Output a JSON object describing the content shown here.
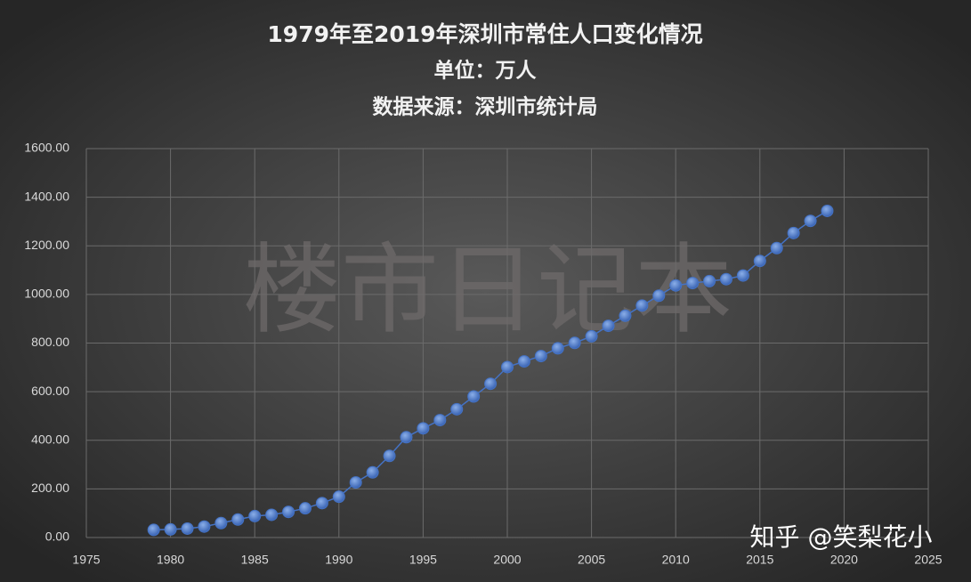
{
  "chart_data": {
    "type": "line",
    "title": "1979年至2019年深圳市常住人口变化情况",
    "subtitles": [
      "单位：万人",
      "数据来源：深圳市统计局"
    ],
    "annotations": [
      "楼市日记本",
      "知乎 @笑梨花小"
    ],
    "x": [
      1979,
      1980,
      1981,
      1982,
      1983,
      1984,
      1985,
      1986,
      1987,
      1988,
      1989,
      1990,
      1991,
      1992,
      1993,
      1994,
      1995,
      1996,
      1997,
      1998,
      1999,
      2000,
      2001,
      2002,
      2003,
      2004,
      2005,
      2006,
      2007,
      2008,
      2009,
      2010,
      2011,
      2012,
      2013,
      2014,
      2015,
      2016,
      2017,
      2018,
      2019
    ],
    "values": [
      31.41,
      33.29,
      36.69,
      44.95,
      59.52,
      74.13,
      88.15,
      93.56,
      105.44,
      120.14,
      141.6,
      167.78,
      226.76,
      268.02,
      335.97,
      412.71,
      449.15,
      482.89,
      527.75,
      580.33,
      632.56,
      701.24,
      724.57,
      746.62,
      778.27,
      800.8,
      827.75,
      871.1,
      912.37,
      954.28,
      995.01,
      1037.2,
      1046.74,
      1054.74,
      1062.89,
      1077.89,
      1137.87,
      1190.84,
      1252.83,
      1302.66,
      1343.88
    ],
    "color": "#4472c4",
    "xlim": [
      1975,
      2025
    ],
    "xticks": [
      1975,
      1980,
      1985,
      1990,
      1995,
      2000,
      2005,
      2010,
      2015,
      2020,
      2025
    ],
    "ylim": [
      0,
      1600
    ],
    "yticks": [
      {
        "value": 0,
        "label": "0.00"
      },
      {
        "value": 200,
        "label": "200.00"
      },
      {
        "value": 400,
        "label": "400.00"
      },
      {
        "value": 600,
        "label": "600.00"
      },
      {
        "value": 800,
        "label": "800.00"
      },
      {
        "value": 1000,
        "label": "1000.00"
      },
      {
        "value": 1200,
        "label": "1200.00"
      },
      {
        "value": 1400,
        "label": "1400.00"
      },
      {
        "value": 1600,
        "label": "1600.00"
      }
    ],
    "grid": true
  }
}
